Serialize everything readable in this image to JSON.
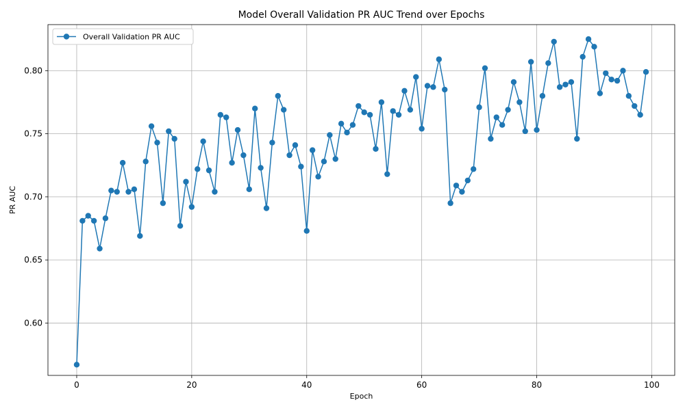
{
  "chart_data": {
    "type": "line",
    "title": "Model Overall Validation PR AUC Trend over Epochs",
    "xlabel": "Epoch",
    "ylabel": "PR AUC",
    "xlim": [
      -5,
      104
    ],
    "ylim": [
      0.5585,
      0.8365
    ],
    "xticks": [
      0,
      20,
      40,
      60,
      80,
      100
    ],
    "yticks": [
      0.6,
      0.65,
      0.7,
      0.75,
      0.8
    ],
    "xtick_labels": [
      "0",
      "20",
      "40",
      "60",
      "80",
      "100"
    ],
    "ytick_labels": [
      "0.60",
      "0.65",
      "0.70",
      "0.75",
      "0.80"
    ],
    "grid": true,
    "legend": "upper-left",
    "series": [
      {
        "name": "Overall Validation PR AUC",
        "color": "#1f77b4",
        "marker": "circle",
        "x": [
          0,
          1,
          2,
          3,
          4,
          5,
          6,
          7,
          8,
          9,
          10,
          11,
          12,
          13,
          14,
          15,
          16,
          17,
          18,
          19,
          20,
          21,
          22,
          23,
          24,
          25,
          26,
          27,
          28,
          29,
          30,
          31,
          32,
          33,
          34,
          35,
          36,
          37,
          38,
          39,
          40,
          41,
          42,
          43,
          44,
          45,
          46,
          47,
          48,
          49,
          50,
          51,
          52,
          53,
          54,
          55,
          56,
          57,
          58,
          59,
          60,
          61,
          62,
          63,
          64,
          65,
          66,
          67,
          68,
          69,
          70,
          71,
          72,
          73,
          74,
          75,
          76,
          77,
          78,
          79,
          80,
          81,
          82,
          83,
          84,
          85,
          86,
          87,
          88,
          89,
          90,
          91,
          92,
          93,
          94,
          95,
          96,
          97,
          98,
          99
        ],
        "values": [
          0.567,
          0.681,
          0.685,
          0.681,
          0.659,
          0.683,
          0.705,
          0.704,
          0.727,
          0.704,
          0.706,
          0.669,
          0.728,
          0.756,
          0.743,
          0.695,
          0.752,
          0.746,
          0.677,
          0.712,
          0.692,
          0.722,
          0.744,
          0.721,
          0.704,
          0.765,
          0.763,
          0.727,
          0.753,
          0.733,
          0.706,
          0.77,
          0.723,
          0.691,
          0.743,
          0.78,
          0.769,
          0.733,
          0.741,
          0.724,
          0.673,
          0.737,
          0.716,
          0.728,
          0.749,
          0.73,
          0.758,
          0.751,
          0.757,
          0.772,
          0.767,
          0.765,
          0.738,
          0.775,
          0.718,
          0.768,
          0.765,
          0.784,
          0.769,
          0.795,
          0.754,
          0.788,
          0.787,
          0.809,
          0.785,
          0.695,
          0.709,
          0.704,
          0.713,
          0.722,
          0.771,
          0.802,
          0.746,
          0.763,
          0.757,
          0.769,
          0.791,
          0.775,
          0.752,
          0.807,
          0.753,
          0.78,
          0.806,
          0.823,
          0.787,
          0.789,
          0.791,
          0.746,
          0.811,
          0.825,
          0.819,
          0.782,
          0.798,
          0.793,
          0.792,
          0.8,
          0.78,
          0.772,
          0.765,
          0.799
        ]
      }
    ]
  }
}
